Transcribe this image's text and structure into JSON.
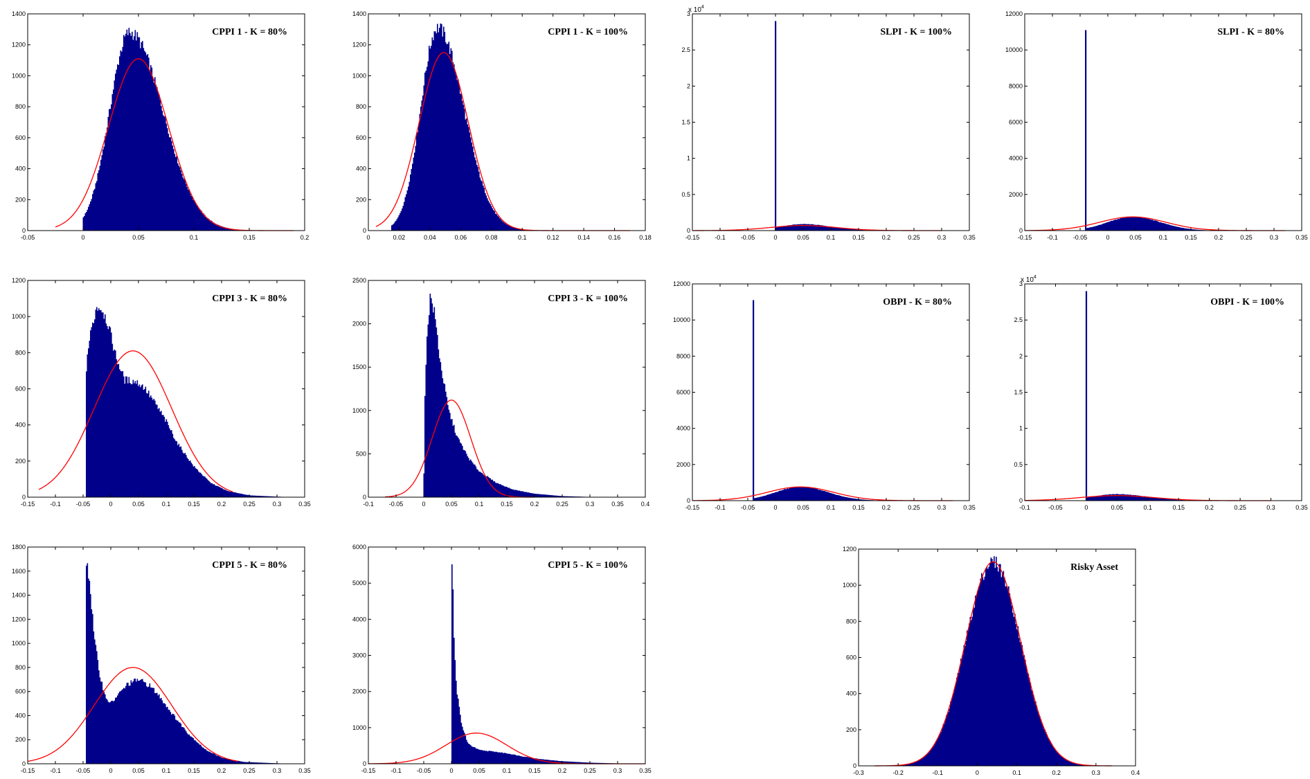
{
  "colors": {
    "bars": "#00008B",
    "fit": "#FF0000",
    "axes": "#000000"
  },
  "chart_data": [
    {
      "type": "bar",
      "title": "CPPI 1 - K = 80%",
      "xlim": [
        -0.05,
        0.2
      ],
      "ylim": [
        0,
        1400
      ],
      "xticks": [
        "-0.05",
        "0",
        "0.05",
        "0.1",
        "0.15",
        "0.2"
      ],
      "yticks": [
        "0",
        "200",
        "400",
        "600",
        "800",
        "1000",
        "1200",
        "1400"
      ],
      "exponent": "",
      "histogram": {
        "kind": "lognorm",
        "start": 0.0,
        "end": 0.19,
        "mode": 0.042,
        "peak": 1280,
        "sigma_left": 0.018,
        "sigma_right": 0.03
      },
      "fit": {
        "mean": 0.05,
        "sd": 0.027,
        "peak": 1110,
        "from": -0.025,
        "to": 0.19
      }
    },
    {
      "type": "bar",
      "title": "CPPI 1 - K = 100%",
      "xlim": [
        0,
        0.18
      ],
      "ylim": [
        0,
        1400
      ],
      "xticks": [
        "0",
        "0.02",
        "0.04",
        "0.06",
        "0.08",
        "0.1",
        "0.12",
        "0.14",
        "0.16",
        "0.18"
      ],
      "yticks": [
        "0",
        "200",
        "400",
        "600",
        "800",
        "1000",
        "1200",
        "1400"
      ],
      "exponent": "",
      "histogram": {
        "kind": "lognorm",
        "start": 0.015,
        "end": 0.17,
        "mode": 0.045,
        "peak": 1310,
        "sigma_left": 0.011,
        "sigma_right": 0.017
      },
      "fit": {
        "mean": 0.049,
        "sd": 0.016,
        "peak": 1150,
        "from": 0.005,
        "to": 0.17
      }
    },
    {
      "type": "bar",
      "title": "SLPI - K = 100%",
      "xlim": [
        -0.15,
        0.35
      ],
      "ylim": [
        0,
        3
      ],
      "xticks": [
        "-0.15",
        "-0.1",
        "-0.05",
        "0",
        "0.05",
        "0.1",
        "0.15",
        "0.2",
        "0.25",
        "0.3",
        "0.35"
      ],
      "yticks": [
        "0",
        "0.5",
        "1",
        "1.5",
        "2",
        "2.5",
        "3"
      ],
      "exponent": "4",
      "histogram": {
        "kind": "spike",
        "start": 0.0,
        "end": 0.32,
        "spike_x": 0.0,
        "spike_y": 2.9,
        "mode": 0.05,
        "peak": 0.09,
        "sigma_left": 0.04,
        "sigma_right": 0.05
      },
      "fit": {
        "mean": 0.05,
        "sd": 0.06,
        "peak": 0.07,
        "from": -0.15,
        "to": 0.3
      }
    },
    {
      "type": "bar",
      "title": "SLPI - K = 80%",
      "xlim": [
        -0.15,
        0.35
      ],
      "ylim": [
        0,
        12000
      ],
      "xticks": [
        "-0.15",
        "-0.1",
        "-0.05",
        "0",
        "0.05",
        "0.1",
        "0.15",
        "0.2",
        "0.25",
        "0.3",
        "0.35"
      ],
      "yticks": [
        "0",
        "2000",
        "4000",
        "6000",
        "8000",
        "10000",
        "12000"
      ],
      "exponent": "",
      "histogram": {
        "kind": "spike",
        "start": -0.04,
        "end": 0.32,
        "spike_x": -0.04,
        "spike_y": 11100,
        "mode": 0.045,
        "peak": 760,
        "sigma_left": 0.045,
        "sigma_right": 0.05
      },
      "fit": {
        "mean": 0.045,
        "sd": 0.06,
        "peak": 760,
        "from": -0.15,
        "to": 0.32
      }
    },
    {
      "type": "bar",
      "title": "CPPI 3 - K = 80%",
      "xlim": [
        -0.15,
        0.35
      ],
      "ylim": [
        0,
        1200
      ],
      "xticks": [
        "-0.15",
        "-0.1",
        "-0.05",
        "0",
        "0.05",
        "0.1",
        "0.15",
        "0.2",
        "0.25",
        "0.3",
        "0.35"
      ],
      "yticks": [
        "0",
        "200",
        "400",
        "600",
        "800",
        "1000",
        "1200"
      ],
      "exponent": "",
      "histogram": {
        "kind": "profile",
        "points": [
          [
            -0.045,
            0
          ],
          [
            -0.044,
            760
          ],
          [
            -0.035,
            930
          ],
          [
            -0.025,
            1060
          ],
          [
            -0.015,
            1040
          ],
          [
            -0.005,
            960
          ],
          [
            0.01,
            770
          ],
          [
            0.025,
            650
          ],
          [
            0.045,
            640
          ],
          [
            0.06,
            610
          ],
          [
            0.08,
            520
          ],
          [
            0.1,
            420
          ],
          [
            0.12,
            300
          ],
          [
            0.15,
            170
          ],
          [
            0.18,
            80
          ],
          [
            0.21,
            35
          ],
          [
            0.25,
            10
          ],
          [
            0.3,
            3
          ],
          [
            0.33,
            0
          ]
        ]
      },
      "fit": {
        "mean": 0.04,
        "sd": 0.07,
        "peak": 810,
        "from": -0.13,
        "to": 0.22
      }
    },
    {
      "type": "bar",
      "title": "CPPI 3 - K = 100%",
      "xlim": [
        -0.1,
        0.4
      ],
      "ylim": [
        0,
        2500
      ],
      "xticks": [
        "-0.1",
        "-0.05",
        "0",
        "0.05",
        "0.1",
        "0.15",
        "0.2",
        "0.25",
        "0.3",
        "0.35",
        "0.4"
      ],
      "yticks": [
        "0",
        "500",
        "1000",
        "1500",
        "2000",
        "2500"
      ],
      "exponent": "",
      "histogram": {
        "kind": "profile",
        "points": [
          [
            0.0,
            0
          ],
          [
            0.001,
            900
          ],
          [
            0.006,
            1900
          ],
          [
            0.012,
            2330
          ],
          [
            0.02,
            2100
          ],
          [
            0.03,
            1550
          ],
          [
            0.045,
            1000
          ],
          [
            0.06,
            700
          ],
          [
            0.08,
            460
          ],
          [
            0.1,
            300
          ],
          [
            0.13,
            170
          ],
          [
            0.16,
            90
          ],
          [
            0.2,
            40
          ],
          [
            0.25,
            12
          ],
          [
            0.3,
            3
          ],
          [
            0.35,
            0
          ]
        ]
      },
      "fit": {
        "mean": 0.05,
        "sd": 0.035,
        "peak": 1120,
        "from": -0.07,
        "to": 0.2
      }
    },
    {
      "type": "bar",
      "title": "OBPI - K = 80%",
      "xlim": [
        -0.15,
        0.35
      ],
      "ylim": [
        0,
        12000
      ],
      "xticks": [
        "-0.15",
        "-0.1",
        "-0.05",
        "0",
        "0.05",
        "0.1",
        "0.15",
        "0.2",
        "0.25",
        "0.3",
        "0.35"
      ],
      "yticks": [
        "0",
        "2000",
        "4000",
        "6000",
        "8000",
        "10000",
        "12000"
      ],
      "exponent": "",
      "histogram": {
        "kind": "spike",
        "start": -0.04,
        "end": 0.32,
        "spike_x": -0.04,
        "spike_y": 11100,
        "mode": 0.045,
        "peak": 760,
        "sigma_left": 0.045,
        "sigma_right": 0.05
      },
      "fit": {
        "mean": 0.045,
        "sd": 0.06,
        "peak": 760,
        "from": -0.15,
        "to": 0.32
      }
    },
    {
      "type": "bar",
      "title": "OBPI - K = 100%",
      "xlim": [
        -0.1,
        0.35
      ],
      "ylim": [
        0,
        3
      ],
      "xticks": [
        "-0.1",
        "-0.05",
        "0",
        "0.05",
        "0.1",
        "0.15",
        "0.2",
        "0.25",
        "0.3",
        "0.35"
      ],
      "yticks": [
        "0",
        "0.5",
        "1",
        "1.5",
        "2",
        "2.5",
        "3"
      ],
      "exponent": "4",
      "histogram": {
        "kind": "spike",
        "start": 0.0,
        "end": 0.32,
        "spike_x": 0.0,
        "spike_y": 2.9,
        "mode": 0.05,
        "peak": 0.09,
        "sigma_left": 0.04,
        "sigma_right": 0.05
      },
      "fit": {
        "mean": 0.05,
        "sd": 0.06,
        "peak": 0.07,
        "from": -0.1,
        "to": 0.3
      }
    },
    {
      "type": "bar",
      "title": "CPPI 5 - K = 80%",
      "xlim": [
        -0.15,
        0.35
      ],
      "ylim": [
        0,
        1800
      ],
      "xticks": [
        "-0.15",
        "-0.1",
        "-0.05",
        "0",
        "0.05",
        "0.1",
        "0.15",
        "0.2",
        "0.25",
        "0.3",
        "0.35"
      ],
      "yticks": [
        "0",
        "200",
        "400",
        "600",
        "800",
        "1000",
        "1200",
        "1400",
        "1600",
        "1800"
      ],
      "exponent": "",
      "histogram": {
        "kind": "profile",
        "points": [
          [
            -0.045,
            0
          ],
          [
            -0.044,
            1720
          ],
          [
            -0.038,
            1500
          ],
          [
            -0.03,
            1050
          ],
          [
            -0.02,
            740
          ],
          [
            -0.01,
            560
          ],
          [
            0.0,
            500
          ],
          [
            0.015,
            580
          ],
          [
            0.03,
            660
          ],
          [
            0.05,
            700
          ],
          [
            0.07,
            650
          ],
          [
            0.09,
            550
          ],
          [
            0.11,
            420
          ],
          [
            0.14,
            250
          ],
          [
            0.17,
            120
          ],
          [
            0.2,
            50
          ],
          [
            0.24,
            15
          ],
          [
            0.3,
            4
          ],
          [
            0.33,
            0
          ]
        ]
      },
      "fit": {
        "mean": 0.04,
        "sd": 0.07,
        "peak": 800,
        "from": -0.15,
        "to": 0.23
      }
    },
    {
      "type": "bar",
      "title": "CPPI 5 - K = 100%",
      "xlim": [
        -0.15,
        0.35
      ],
      "ylim": [
        0,
        6000
      ],
      "xticks": [
        "-0.15",
        "-0.1",
        "-0.05",
        "0",
        "0.05",
        "0.1",
        "0.15",
        "0.2",
        "0.25",
        "0.3",
        "0.35"
      ],
      "yticks": [
        "0",
        "1000",
        "2000",
        "3000",
        "4000",
        "5000",
        "6000"
      ],
      "exponent": "",
      "histogram": {
        "kind": "profile",
        "points": [
          [
            0.0,
            0
          ],
          [
            0.001,
            6000
          ],
          [
            0.005,
            3200
          ],
          [
            0.01,
            2000
          ],
          [
            0.018,
            1100
          ],
          [
            0.03,
            550
          ],
          [
            0.05,
            380
          ],
          [
            0.08,
            330
          ],
          [
            0.1,
            290
          ],
          [
            0.13,
            200
          ],
          [
            0.16,
            130
          ],
          [
            0.2,
            70
          ],
          [
            0.25,
            30
          ],
          [
            0.3,
            10
          ],
          [
            0.33,
            0
          ]
        ]
      },
      "fit": {
        "mean": 0.045,
        "sd": 0.055,
        "peak": 850,
        "from": -0.15,
        "to": 0.35
      }
    },
    {
      "type": "bar",
      "title": "Risky Asset",
      "xlim": [
        -0.3,
        0.4
      ],
      "ylim": [
        0,
        1200
      ],
      "xticks": [
        "-0.3",
        "-0.2",
        "-0.1",
        "0",
        "0.1",
        "0.2",
        "0.3",
        "0.4"
      ],
      "yticks": [
        "0",
        "200",
        "400",
        "600",
        "800",
        "1000",
        "1200"
      ],
      "exponent": "",
      "histogram": {
        "kind": "lognorm",
        "start": -0.28,
        "end": 0.37,
        "mode": 0.04,
        "peak": 1130,
        "sigma_left": 0.07,
        "sigma_right": 0.07
      },
      "fit": {
        "mean": 0.04,
        "sd": 0.07,
        "peak": 1130,
        "from": -0.26,
        "to": 0.34
      }
    }
  ]
}
